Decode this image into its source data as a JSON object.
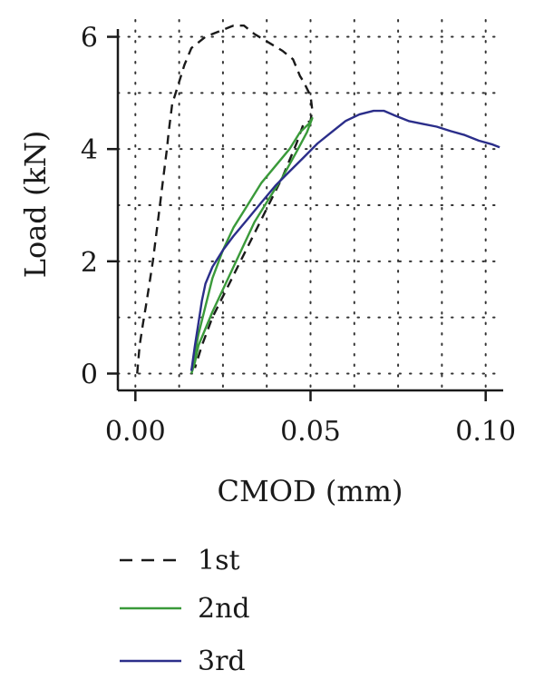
{
  "chart_data": {
    "type": "line",
    "title": "",
    "xlabel": "CMOD (mm)",
    "ylabel": "Load (kN)",
    "xlim": [
      -0.005,
      0.105
    ],
    "ylim": [
      -0.3,
      6.3
    ],
    "xticks": [
      0.0,
      0.05,
      0.1
    ],
    "xtick_labels": [
      "0.00",
      "0.05",
      "0.10"
    ],
    "yticks": [
      0,
      2,
      4,
      6
    ],
    "ytick_labels": [
      "0",
      "2",
      "4",
      "6"
    ],
    "grid": true,
    "legend_position": "bottom",
    "series": [
      {
        "name": "1st",
        "style": "dashed",
        "color": "#1a1a1a",
        "points": [
          [
            0.0005,
            0.0
          ],
          [
            0.0012,
            0.5
          ],
          [
            0.0022,
            0.9
          ],
          [
            0.003,
            1.2
          ],
          [
            0.004,
            1.6
          ],
          [
            0.005,
            2.0
          ],
          [
            0.006,
            2.5
          ],
          [
            0.007,
            3.0
          ],
          [
            0.008,
            3.5
          ],
          [
            0.009,
            4.0
          ],
          [
            0.0095,
            4.3
          ],
          [
            0.0105,
            4.8
          ],
          [
            0.012,
            5.1
          ],
          [
            0.014,
            5.5
          ],
          [
            0.016,
            5.8
          ],
          [
            0.018,
            5.9
          ],
          [
            0.02,
            6.0
          ],
          [
            0.024,
            6.1
          ],
          [
            0.028,
            6.2
          ],
          [
            0.031,
            6.2
          ],
          [
            0.034,
            6.05
          ],
          [
            0.038,
            5.9
          ],
          [
            0.042,
            5.75
          ],
          [
            0.045,
            5.6
          ],
          [
            0.047,
            5.3
          ],
          [
            0.048,
            5.2
          ],
          [
            0.05,
            4.95
          ],
          [
            0.0505,
            4.7
          ],
          [
            0.05,
            4.5
          ],
          [
            0.048,
            4.45
          ],
          [
            0.046,
            4.1
          ],
          [
            0.044,
            3.8
          ],
          [
            0.042,
            3.5
          ],
          [
            0.038,
            3.0
          ],
          [
            0.034,
            2.5
          ],
          [
            0.03,
            2.0
          ],
          [
            0.026,
            1.5
          ],
          [
            0.022,
            1.0
          ],
          [
            0.019,
            0.5
          ],
          [
            0.017,
            0.1
          ]
        ]
      },
      {
        "name": "2nd",
        "style": "solid",
        "color": "#3a9a3a",
        "points": [
          [
            0.016,
            0.0
          ],
          [
            0.017,
            0.2
          ],
          [
            0.018,
            0.5
          ],
          [
            0.02,
            0.8
          ],
          [
            0.022,
            1.1
          ],
          [
            0.025,
            1.5
          ],
          [
            0.028,
            1.9
          ],
          [
            0.031,
            2.3
          ],
          [
            0.034,
            2.7
          ],
          [
            0.038,
            3.1
          ],
          [
            0.042,
            3.5
          ],
          [
            0.046,
            3.95
          ],
          [
            0.049,
            4.3
          ],
          [
            0.0505,
            4.55
          ],
          [
            0.0495,
            4.45
          ],
          [
            0.047,
            4.3
          ],
          [
            0.044,
            4.0
          ],
          [
            0.04,
            3.7
          ],
          [
            0.036,
            3.4
          ],
          [
            0.032,
            3.0
          ],
          [
            0.028,
            2.6
          ],
          [
            0.025,
            2.2
          ],
          [
            0.022,
            1.7
          ],
          [
            0.02,
            1.2
          ],
          [
            0.018,
            0.7
          ],
          [
            0.0165,
            0.2
          ],
          [
            0.016,
            0.05
          ]
        ]
      },
      {
        "name": "3rd",
        "style": "solid",
        "color": "#2b2e8a",
        "points": [
          [
            0.016,
            0.05
          ],
          [
            0.017,
            0.5
          ],
          [
            0.018,
            0.9
          ],
          [
            0.019,
            1.3
          ],
          [
            0.02,
            1.6
          ],
          [
            0.022,
            1.9
          ],
          [
            0.025,
            2.2
          ],
          [
            0.028,
            2.45
          ],
          [
            0.032,
            2.75
          ],
          [
            0.036,
            3.05
          ],
          [
            0.04,
            3.35
          ],
          [
            0.044,
            3.6
          ],
          [
            0.048,
            3.85
          ],
          [
            0.052,
            4.1
          ],
          [
            0.056,
            4.3
          ],
          [
            0.06,
            4.5
          ],
          [
            0.064,
            4.62
          ],
          [
            0.068,
            4.68
          ],
          [
            0.071,
            4.68
          ],
          [
            0.074,
            4.6
          ],
          [
            0.078,
            4.5
          ],
          [
            0.082,
            4.45
          ],
          [
            0.086,
            4.4
          ],
          [
            0.09,
            4.32
          ],
          [
            0.094,
            4.25
          ],
          [
            0.098,
            4.15
          ],
          [
            0.102,
            4.08
          ],
          [
            0.104,
            4.03
          ]
        ]
      }
    ]
  }
}
